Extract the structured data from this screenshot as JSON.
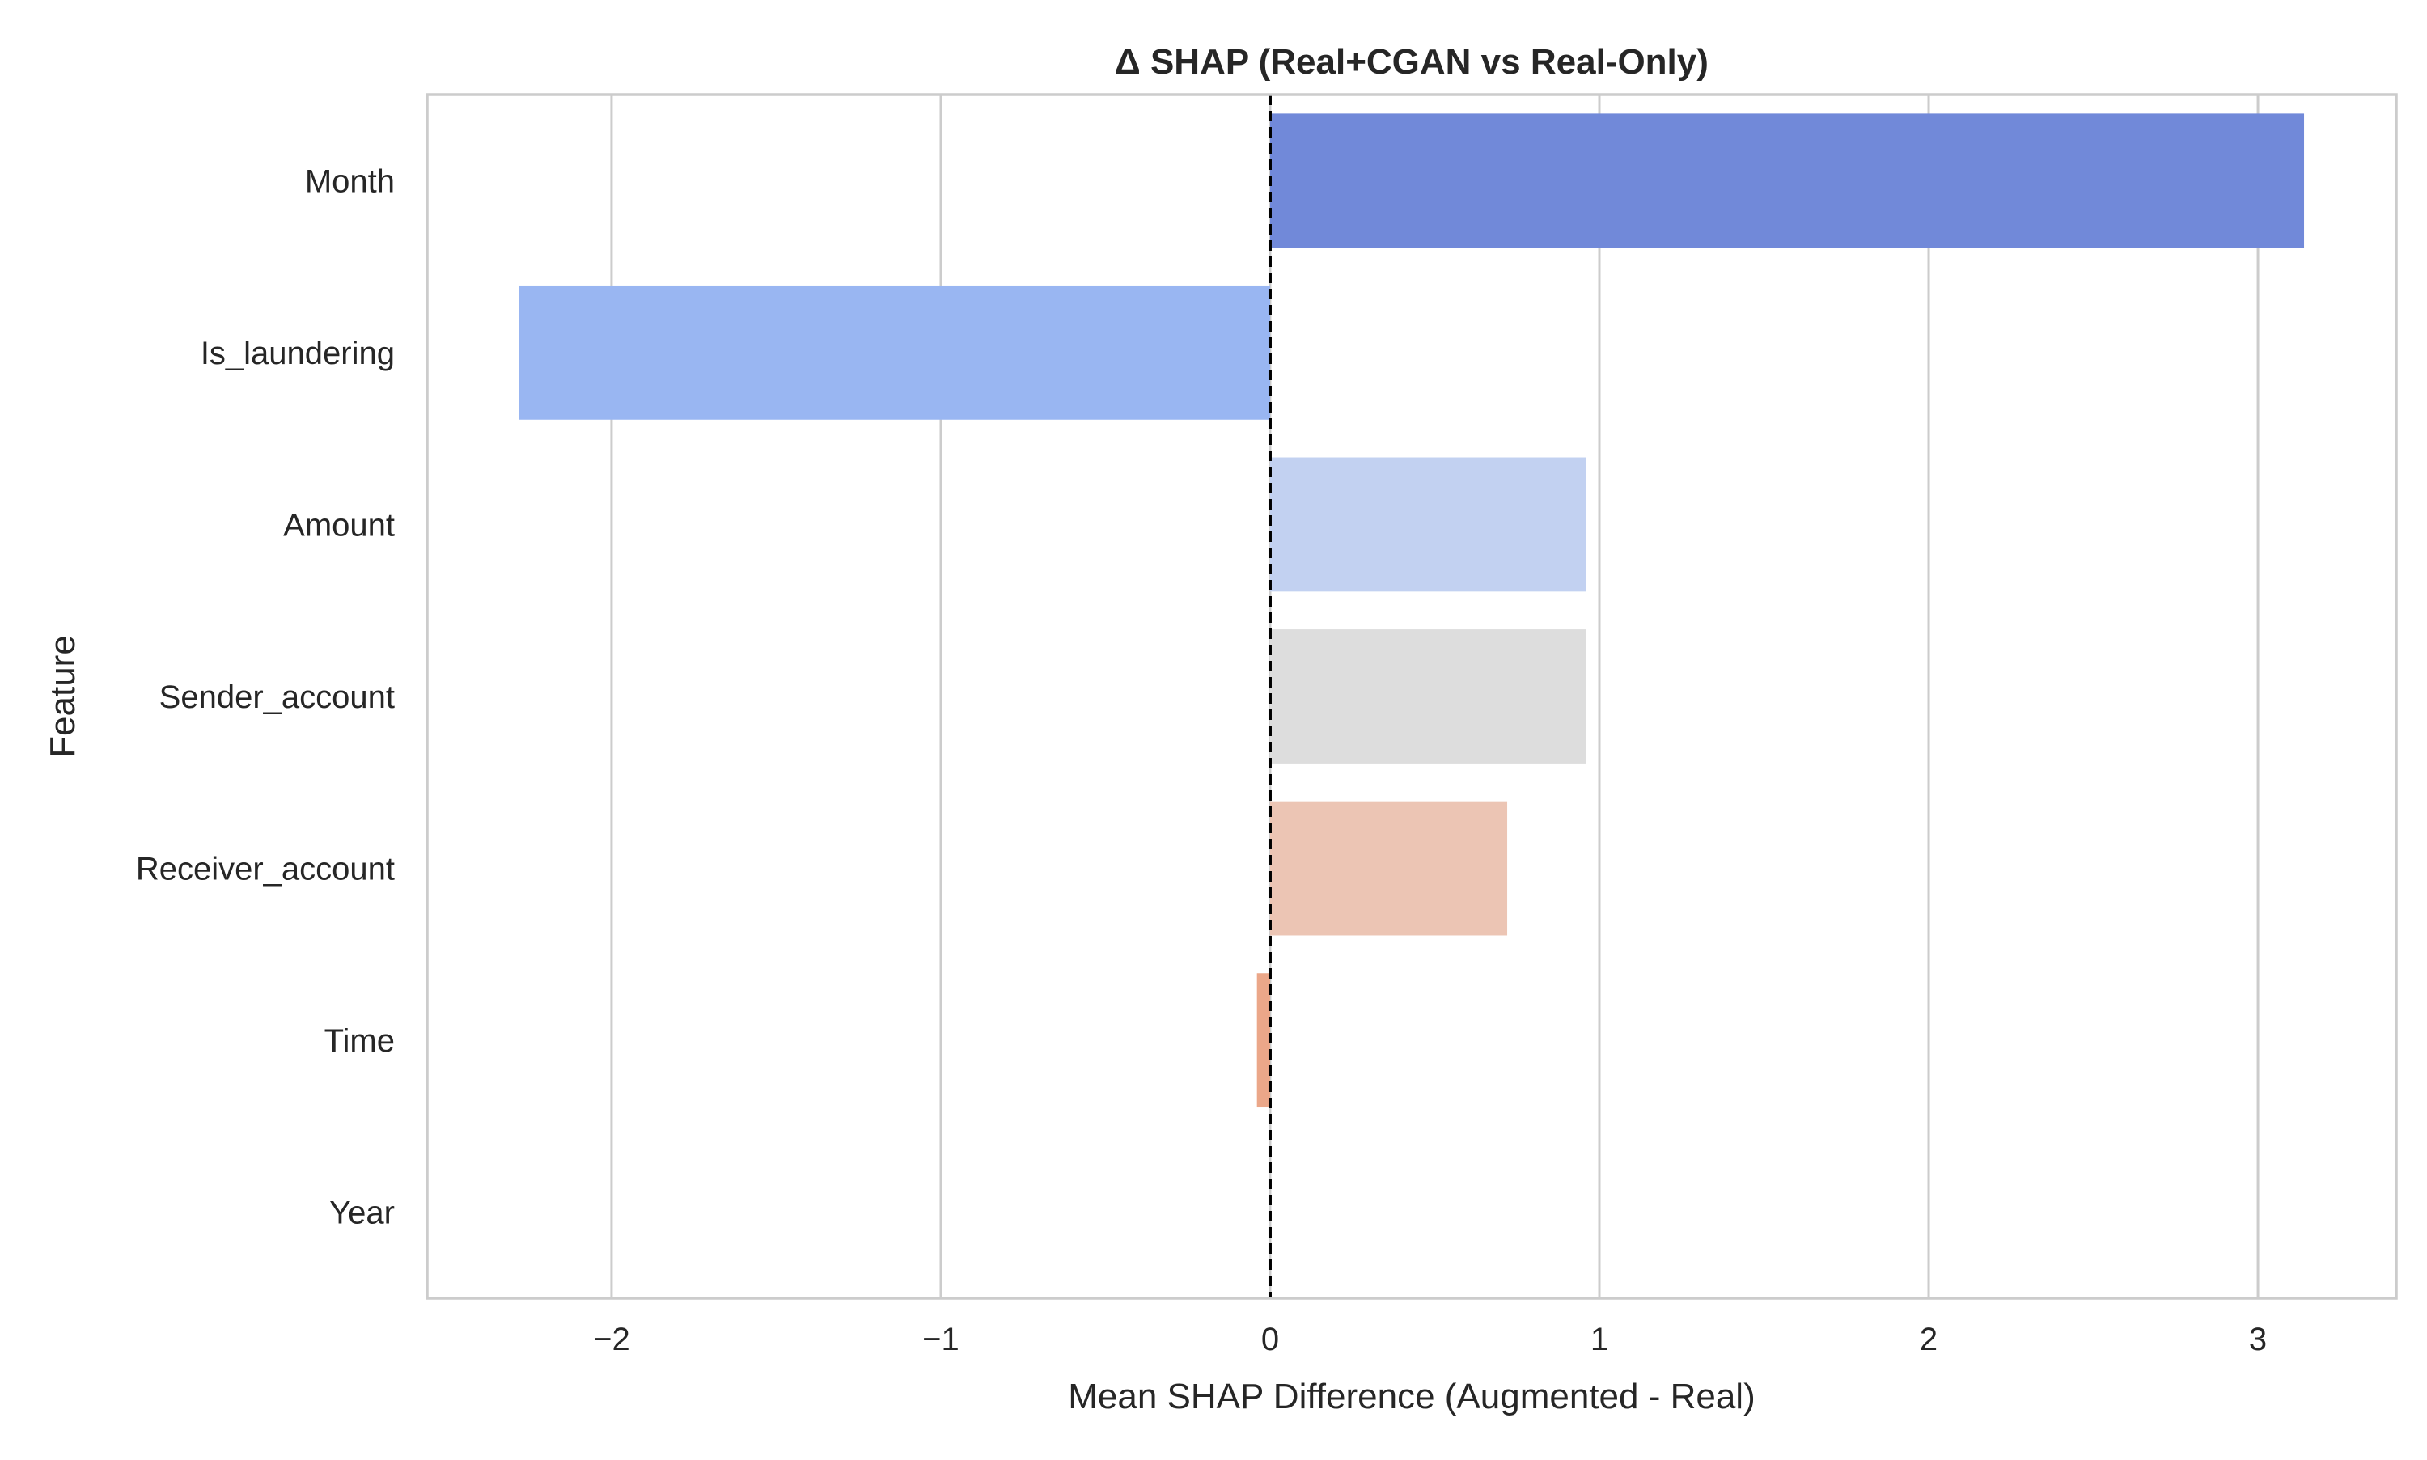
{
  "chart_data": {
    "type": "bar",
    "orientation": "horizontal",
    "title": "Δ SHAP (Real+CGAN vs Real-Only)",
    "xlabel": "Mean SHAP Difference (Augmented - Real)",
    "ylabel": "Feature",
    "categories": [
      "Month",
      "Is_laundering",
      "Amount",
      "Sender_account",
      "Receiver_account",
      "Time",
      "Year"
    ],
    "values": [
      3.14,
      -2.28,
      0.96,
      0.96,
      0.72,
      -0.04,
      0.0
    ],
    "colors": [
      "#7189d9",
      "#99b6f2",
      "#c2d1f1",
      "#dddddd",
      "#ecc5b4",
      "#eba789",
      "#dd684d"
    ],
    "xlim": [
      -2.56,
      3.42
    ],
    "xticks": [
      -2,
      -1,
      0,
      1,
      2,
      3
    ],
    "xtick_labels": [
      "−2",
      "−1",
      "0",
      "1",
      "2",
      "3"
    ],
    "reference_line": {
      "x": 0,
      "style": "dashed",
      "color": "#000000"
    },
    "grid": {
      "x": true,
      "y": false
    },
    "legend": null
  }
}
